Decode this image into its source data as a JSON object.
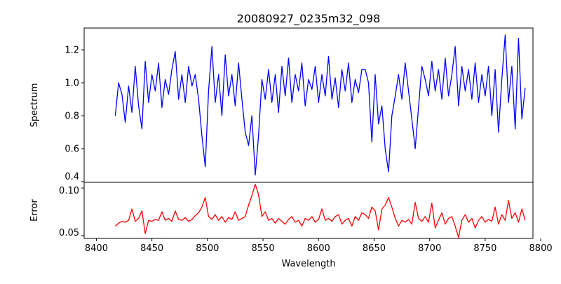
{
  "chart_data": [
    {
      "type": "line",
      "title": "20080927_0235m32_098",
      "xlabel": "",
      "ylabel": "Spectrum",
      "xlim": [
        8389,
        8793
      ],
      "ylim": [
        0.396,
        1.332
      ],
      "yticks": [
        0.4,
        0.6,
        0.8,
        1.0,
        1.2
      ],
      "ytick_labels": [
        "0.4",
        "0.6",
        "0.8",
        "1.0",
        "1.2"
      ],
      "color": "#0000ff",
      "x_start": 8417,
      "x_step": 3,
      "values": [
        0.8,
        1.0,
        0.93,
        0.76,
        0.98,
        0.82,
        1.1,
        0.86,
        0.72,
        1.13,
        0.88,
        1.05,
        0.95,
        1.12,
        0.85,
        1.02,
        0.93,
        1.08,
        1.19,
        0.9,
        1.05,
        0.88,
        1.1,
        0.98,
        1.05,
        0.9,
        0.68,
        0.49,
        0.95,
        1.22,
        0.88,
        1.05,
        0.8,
        1.17,
        0.92,
        1.05,
        0.86,
        1.12,
        0.9,
        0.7,
        0.62,
        0.8,
        0.44,
        0.68,
        1.02,
        0.9,
        1.08,
        0.88,
        1.05,
        0.82,
        1.1,
        0.92,
        1.15,
        0.88,
        1.05,
        0.95,
        1.12,
        0.86,
        1.02,
        0.96,
        1.1,
        0.88,
        1.05,
        0.92,
        1.16,
        0.9,
        1.03,
        0.85,
        1.08,
        0.95,
        1.12,
        0.88,
        1.02,
        0.94,
        1.08,
        1.08,
        1.0,
        0.64,
        1.05,
        0.75,
        0.86,
        0.6,
        0.46,
        0.8,
        0.92,
        1.05,
        0.9,
        1.12,
        0.95,
        0.78,
        0.6,
        0.85,
        1.1,
        1.02,
        0.92,
        1.13,
        0.95,
        1.08,
        0.9,
        1.15,
        0.92,
        1.05,
        1.22,
        0.86,
        1.1,
        0.95,
        1.08,
        0.9,
        1.12,
        0.88,
        1.05,
        0.92,
        1.1,
        0.8,
        1.08,
        0.7,
        1.02,
        1.29,
        0.88,
        1.1,
        0.72,
        1.27,
        0.78,
        0.97
      ]
    },
    {
      "type": "line",
      "xlabel": "Wavelength",
      "ylabel": "Error",
      "xlim": [
        8389,
        8793
      ],
      "ylim": [
        0.047,
        0.106
      ],
      "xticks": [
        8400,
        8450,
        8500,
        8550,
        8600,
        8650,
        8700,
        8750,
        8800
      ],
      "xtick_labels": [
        "8400",
        "8450",
        "8500",
        "8550",
        "8600",
        "8650",
        "8700",
        "8750",
        "8800"
      ],
      "yticks": [
        0.05,
        0.1
      ],
      "ytick_labels": [
        "0.05",
        "0.10"
      ],
      "color": "#ff0000",
      "x_start": 8417,
      "x_step": 3,
      "values": [
        0.06,
        0.063,
        0.065,
        0.064,
        0.066,
        0.078,
        0.065,
        0.068,
        0.076,
        0.052,
        0.066,
        0.065,
        0.067,
        0.066,
        0.075,
        0.066,
        0.068,
        0.065,
        0.076,
        0.067,
        0.066,
        0.069,
        0.065,
        0.067,
        0.071,
        0.074,
        0.08,
        0.09,
        0.07,
        0.067,
        0.072,
        0.066,
        0.07,
        0.064,
        0.069,
        0.067,
        0.075,
        0.066,
        0.068,
        0.07,
        0.082,
        0.092,
        0.104,
        0.093,
        0.07,
        0.075,
        0.066,
        0.068,
        0.063,
        0.068,
        0.065,
        0.062,
        0.067,
        0.07,
        0.064,
        0.066,
        0.06,
        0.068,
        0.066,
        0.07,
        0.064,
        0.067,
        0.078,
        0.066,
        0.068,
        0.065,
        0.07,
        0.072,
        0.062,
        0.066,
        0.068,
        0.06,
        0.07,
        0.066,
        0.074,
        0.072,
        0.068,
        0.08,
        0.076,
        0.056,
        0.078,
        0.082,
        0.09,
        0.08,
        0.068,
        0.06,
        0.066,
        0.064,
        0.067,
        0.062,
        0.085,
        0.068,
        0.065,
        0.07,
        0.064,
        0.084,
        0.058,
        0.066,
        0.074,
        0.062,
        0.068,
        0.07,
        0.06,
        0.048,
        0.066,
        0.072,
        0.064,
        0.068,
        0.058,
        0.066,
        0.07,
        0.064,
        0.067,
        0.065,
        0.08,
        0.062,
        0.072,
        0.066,
        0.087,
        0.068,
        0.074,
        0.064,
        0.078,
        0.066
      ]
    }
  ]
}
